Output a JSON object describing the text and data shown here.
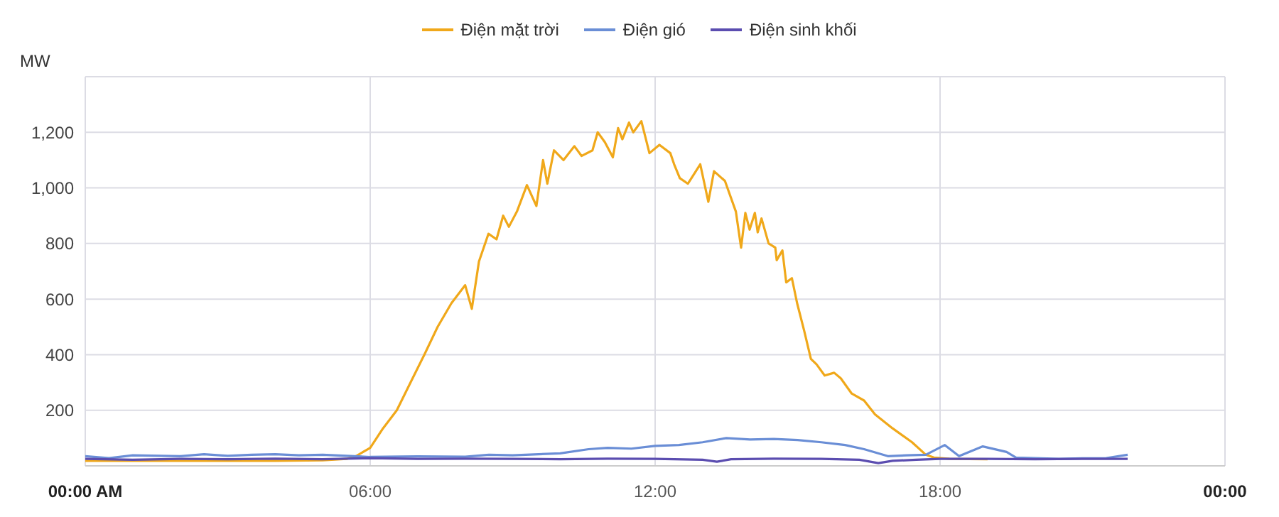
{
  "chart_data": {
    "type": "line",
    "ylabel": "MW",
    "legend": "top",
    "grid": true,
    "marker": "none",
    "line_style": "solid",
    "xlim": [
      0,
      24
    ],
    "xticks": [
      {
        "value": 0,
        "label": "00:00 AM"
      },
      {
        "value": 6,
        "label": "06:00"
      },
      {
        "value": 12,
        "label": "12:00"
      },
      {
        "value": 18,
        "label": "18:00"
      },
      {
        "value": 24,
        "label": "00:00"
      }
    ],
    "ylim": [
      0,
      1400
    ],
    "yticks": [
      {
        "value": 200,
        "label": "200"
      },
      {
        "value": 400,
        "label": "400"
      },
      {
        "value": 600,
        "label": "600"
      },
      {
        "value": 800,
        "label": "800"
      },
      {
        "value": 1000,
        "label": "1,000"
      },
      {
        "value": 1200,
        "label": "1,200"
      },
      {
        "value": 1400,
        "label": null
      }
    ],
    "series": [
      {
        "name": "Điện mặt trời",
        "color": "#f0a81a",
        "x": [
          0,
          2,
          4,
          5,
          5.5,
          5.7,
          6,
          6.27,
          6.56,
          6.85,
          7.14,
          7.42,
          7.71,
          8,
          8.14,
          8.29,
          8.49,
          8.66,
          8.8,
          8.92,
          9.09,
          9.3,
          9.5,
          9.64,
          9.73,
          9.87,
          10.07,
          10.3,
          10.45,
          10.68,
          10.79,
          10.94,
          11.11,
          11.22,
          11.31,
          11.45,
          11.54,
          11.71,
          11.88,
          12.09,
          12.32,
          12.4,
          12.52,
          12.69,
          12.95,
          13.12,
          13.24,
          13.47,
          13.7,
          13.81,
          13.9,
          13.99,
          14.1,
          14.16,
          14.24,
          14.39,
          14.53,
          14.56,
          14.68,
          14.76,
          14.88,
          14.99,
          15.14,
          15.28,
          15.4,
          15.57,
          15.77,
          15.91,
          16.14,
          16.4,
          16.63,
          17,
          17.41,
          17.7,
          17.87,
          18.2,
          19
        ],
        "values": [
          18,
          18,
          18,
          20,
          25,
          35,
          65,
          135,
          200,
          300,
          400,
          500,
          585,
          650,
          565,
          735,
          835,
          815,
          900,
          860,
          915,
          1010,
          935,
          1100,
          1015,
          1135,
          1100,
          1150,
          1115,
          1135,
          1200,
          1165,
          1110,
          1215,
          1175,
          1235,
          1200,
          1240,
          1125,
          1155,
          1125,
          1085,
          1035,
          1015,
          1085,
          950,
          1060,
          1025,
          915,
          785,
          910,
          850,
          910,
          840,
          890,
          800,
          785,
          740,
          775,
          660,
          675,
          585,
          485,
          385,
          365,
          325,
          335,
          315,
          260,
          235,
          185,
          135,
          85,
          40,
          30,
          25,
          24
        ]
      },
      {
        "name": "Điện gió",
        "color": "#6a8ed6",
        "x": [
          0,
          0.5,
          1,
          2,
          2.5,
          3,
          3.5,
          4,
          4.5,
          5,
          5.5,
          6,
          7,
          8,
          8.5,
          9,
          10,
          10.6,
          11,
          11.5,
          12,
          12.5,
          13,
          13.5,
          14,
          14.5,
          15,
          15.5,
          16,
          16.4,
          16.9,
          17.3,
          17.7,
          18.1,
          18.4,
          18.9,
          19.4,
          19.6,
          20,
          20.5,
          21,
          21.5,
          21.95
        ],
        "values": [
          35,
          28,
          38,
          35,
          42,
          36,
          40,
          42,
          38,
          40,
          36,
          32,
          34,
          33,
          40,
          38,
          45,
          60,
          65,
          62,
          72,
          75,
          85,
          100,
          95,
          97,
          93,
          85,
          75,
          60,
          35,
          38,
          40,
          75,
          35,
          70,
          50,
          30,
          28,
          25,
          27,
          28,
          40
        ]
      },
      {
        "name": "Điện sinh khối",
        "color": "#5b4db0",
        "x": [
          0,
          1,
          2,
          3,
          4,
          5,
          6,
          7,
          8,
          9,
          10,
          11,
          12,
          13,
          13.3,
          13.6,
          14.5,
          15.5,
          16.3,
          16.7,
          17,
          17.5,
          18,
          19,
          20,
          21,
          21.95
        ],
        "values": [
          25,
          22,
          25,
          24,
          26,
          24,
          28,
          25,
          26,
          25,
          24,
          26,
          25,
          22,
          15,
          24,
          26,
          25,
          22,
          10,
          18,
          22,
          25,
          25,
          24,
          25,
          25
        ]
      }
    ]
  }
}
